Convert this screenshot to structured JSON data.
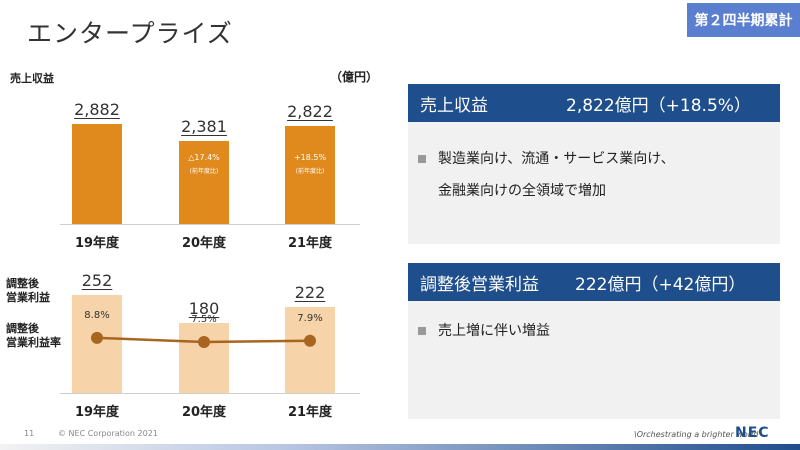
{
  "slide": {
    "title": "エンタープライズ",
    "badge": "第２四半期累計",
    "page_number": "11",
    "copyright": "© NEC Corporation 2021",
    "tagline": "\\Orchestrating a brighter world",
    "logo": "NEC"
  },
  "revenue_chart": {
    "label": "売上収益",
    "unit": "（億円）",
    "years": [
      "19年度",
      "20年度",
      "21年度"
    ],
    "values": [
      "2,882",
      "2,381",
      "2,822"
    ],
    "changes": [
      "",
      "△17.4%",
      "+18.5%"
    ],
    "change_note": "(前年度比)"
  },
  "profit_chart": {
    "label_line1": "調整後",
    "label_line2": "営業利益",
    "margin_label_line1": "調整後",
    "margin_label_line2": "営業利益率",
    "years": [
      "19年度",
      "20年度",
      "21年度"
    ],
    "values": [
      "252",
      "180",
      "222"
    ],
    "margins": [
      "8.8%",
      "7.5%",
      "7.9%"
    ]
  },
  "chart_data": [
    {
      "type": "bar",
      "categories": [
        "19年度",
        "20年度",
        "21年度"
      ],
      "values": [
        2882,
        2381,
        2822
      ],
      "title": "売上収益",
      "ylabel": "（億円）",
      "ylim": [
        0,
        3000
      ],
      "color": "#e08a1e"
    },
    {
      "type": "bar",
      "categories": [
        "19年度",
        "20年度",
        "21年度"
      ],
      "series": [
        {
          "name": "調整後営業利益",
          "values": [
            252,
            180,
            222
          ],
          "color": "#f6d3a8"
        },
        {
          "name": "調整後営業利益率",
          "values": [
            8.8,
            7.5,
            7.9
          ],
          "color": "#a8651f",
          "type": "line"
        }
      ],
      "ylim": [
        0,
        260
      ],
      "y2lim": [
        0,
        12
      ]
    }
  ],
  "panel_revenue": {
    "heading": "売上収益",
    "amount": "2,822億円（+18.5%）",
    "bullet_line1": "製造業向け、流通・サービス業向け、",
    "bullet_line2": "金融業向けの全領域で増加"
  },
  "panel_profit": {
    "heading": "調整後営業利益",
    "amount": "222億円（+42億円）",
    "bullet": "売上増に伴い増益"
  },
  "colors": {
    "bar_orange": "#e08a1e",
    "bar_light": "#f6d3a8",
    "line_brown": "#a8651f",
    "panel_navy": "#1f4e8c",
    "badge_blue": "#5a7fd0"
  }
}
